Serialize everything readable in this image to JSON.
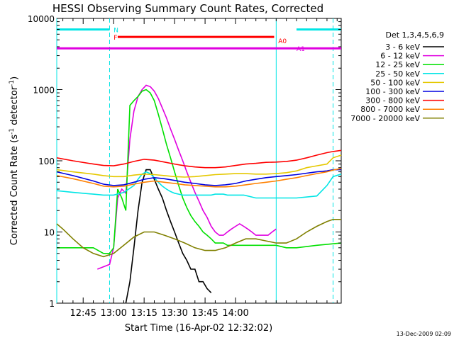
{
  "chart_data": {
    "type": "line",
    "title": "HESSI Observing Summary Count Rates, Corrected",
    "xlabel": "Start Time (16-Apr-02 12:32:02)",
    "ylabel_main": "Corrected Count Rate (s",
    "ylabel_sup1": "-1",
    "ylabel_mid": " detector",
    "ylabel_sup2": "-1",
    "ylabel_end": ")",
    "footer_date": "13-Dec-2009 02:09",
    "y_scale": "log",
    "ylim": [
      1,
      10000
    ],
    "xlim_min": [
      32,
      172
    ],
    "grid": false,
    "legend_position": "right",
    "legend_title": "Det 1,3,4,5,6,9",
    "x_ticks": [
      {
        "min": 45,
        "label": "12:45"
      },
      {
        "min": 60,
        "label": "13:00"
      },
      {
        "min": 75,
        "label": "13:15"
      },
      {
        "min": 90,
        "label": "13:30"
      },
      {
        "min": 105,
        "label": "13:45"
      },
      {
        "min": 120,
        "label": "14:00"
      }
    ],
    "y_ticks": [
      {
        "value": 1,
        "label": "1"
      },
      {
        "value": 10,
        "label": "10"
      },
      {
        "value": 100,
        "label": "100"
      },
      {
        "value": 1000,
        "label": "1000"
      },
      {
        "value": 10000,
        "label": "10000"
      }
    ],
    "flags": [
      {
        "label": "N",
        "color": "#00e5e5",
        "value": 7000,
        "ranges": [
          [
            32,
            58
          ],
          [
            150,
            172
          ]
        ]
      },
      {
        "label": "F",
        "color": "#ff0000",
        "value": 5500,
        "ranges": [
          [
            62,
            139
          ]
        ]
      },
      {
        "label": "A0",
        "color": "#ff0000",
        "value": 4900,
        "ranges": []
      },
      {
        "label": "A1",
        "color": "#e000e0",
        "value": 3800,
        "ranges": [
          [
            32,
            172
          ]
        ]
      }
    ],
    "flag_label_positions": {
      "N": 60,
      "F": 60,
      "A0": 141,
      "A1": 150
    },
    "markers": [
      {
        "min": 32,
        "style": "solid",
        "color": "#00e5e5"
      },
      {
        "min": 58,
        "style": "dashed",
        "color": "#00e5e5"
      },
      {
        "min": 140,
        "style": "solid",
        "color": "#00e5e5"
      },
      {
        "min": 168,
        "style": "dashed",
        "color": "#00e5e5"
      }
    ],
    "series": [
      {
        "name": "3 - 6 keV",
        "color": "#000000",
        "x": [
          66,
          68,
          70,
          72,
          74,
          76,
          78,
          80,
          82,
          84,
          86,
          88,
          90,
          92,
          94,
          96,
          98,
          100,
          102,
          104,
          106,
          108
        ],
        "y": [
          1,
          2,
          6,
          20,
          50,
          75,
          75,
          55,
          40,
          30,
          20,
          14,
          10,
          7,
          5,
          4,
          3,
          3,
          2,
          2,
          1.6,
          1.4
        ]
      },
      {
        "name": "6 - 12 keV",
        "color": "#e000e0",
        "x": [
          52,
          58,
          60,
          62,
          64,
          66,
          68,
          70,
          72,
          74,
          76,
          78,
          80,
          82,
          84,
          86,
          88,
          90,
          92,
          94,
          96,
          98,
          100,
          102,
          104,
          106,
          108,
          110,
          112,
          114,
          116,
          118,
          120,
          122,
          124,
          126,
          128,
          130,
          132,
          134,
          136,
          138,
          140
        ],
        "y": [
          3,
          3.5,
          6,
          30,
          40,
          35,
          200,
          500,
          800,
          1000,
          1150,
          1100,
          950,
          750,
          550,
          400,
          280,
          200,
          140,
          100,
          70,
          50,
          36,
          27,
          20,
          16,
          12,
          10,
          9,
          9,
          10,
          11,
          12,
          13,
          12,
          11,
          10,
          9,
          9,
          9,
          9,
          10,
          11
        ]
      },
      {
        "name": "12 - 25 keV",
        "color": "#00e000",
        "x": [
          32,
          40,
          50,
          55,
          58,
          60,
          62,
          64,
          66,
          68,
          70,
          72,
          74,
          76,
          78,
          80,
          82,
          84,
          86,
          88,
          90,
          92,
          94,
          96,
          98,
          100,
          102,
          104,
          106,
          108,
          110,
          112,
          114,
          116,
          118,
          120,
          122,
          124,
          126,
          128,
          130,
          132,
          134,
          136,
          138,
          140,
          145,
          150,
          160,
          172
        ],
        "y": [
          6,
          6,
          6,
          5,
          5,
          6,
          40,
          30,
          20,
          600,
          700,
          800,
          950,
          1000,
          900,
          700,
          450,
          280,
          170,
          110,
          70,
          45,
          30,
          22,
          17,
          14,
          12,
          10,
          9,
          8,
          7,
          7,
          7,
          6.5,
          6.5,
          6.5,
          6.5,
          6.5,
          6.5,
          6.5,
          6.5,
          6.5,
          6.5,
          6.5,
          6.5,
          6.5,
          6,
          6,
          6.5,
          7
        ]
      },
      {
        "name": "25 - 50 keV",
        "color": "#00e5e5",
        "x": [
          32,
          40,
          50,
          55,
          60,
          65,
          70,
          72,
          74,
          76,
          78,
          80,
          82,
          84,
          86,
          88,
          90,
          92,
          94,
          96,
          98,
          100,
          102,
          104,
          106,
          108,
          110,
          112,
          114,
          116,
          118,
          120,
          122,
          124,
          126,
          128,
          130,
          132,
          134,
          136,
          138,
          140,
          145,
          150,
          160,
          165,
          168,
          172
        ],
        "y": [
          38,
          36,
          34,
          33,
          33,
          36,
          45,
          55,
          65,
          70,
          66,
          58,
          50,
          44,
          40,
          37,
          35,
          34,
          33,
          33,
          33,
          33,
          33,
          33,
          33,
          33,
          34,
          34,
          34,
          33,
          33,
          33,
          33,
          33,
          32,
          31,
          30,
          30,
          30,
          30,
          30,
          30,
          30,
          30,
          32,
          45,
          60,
          65
        ]
      },
      {
        "name": "50 - 100 keV",
        "color": "#e5c800",
        "x": [
          32,
          40,
          50,
          55,
          60,
          65,
          70,
          75,
          80,
          85,
          90,
          95,
          100,
          105,
          110,
          115,
          120,
          125,
          130,
          135,
          140,
          145,
          150,
          155,
          160,
          165,
          168,
          172
        ],
        "y": [
          75,
          70,
          65,
          62,
          60,
          60,
          63,
          65,
          64,
          62,
          60,
          59,
          60,
          62,
          64,
          65,
          66,
          66,
          65,
          65,
          66,
          68,
          72,
          80,
          85,
          90,
          110,
          120
        ]
      },
      {
        "name": "100 - 300 keV",
        "color": "#0000e0",
        "x": [
          32,
          40,
          50,
          55,
          60,
          65,
          70,
          75,
          80,
          85,
          90,
          95,
          100,
          105,
          110,
          115,
          120,
          125,
          130,
          135,
          140,
          145,
          150,
          155,
          160,
          165,
          168,
          172
        ],
        "y": [
          70,
          62,
          52,
          47,
          45,
          46,
          50,
          55,
          58,
          56,
          53,
          50,
          48,
          46,
          45,
          46,
          48,
          52,
          55,
          58,
          60,
          62,
          64,
          67,
          70,
          72,
          75,
          75
        ]
      },
      {
        "name": "300 - 800 keV",
        "color": "#ff0000",
        "x": [
          32,
          40,
          50,
          55,
          60,
          65,
          70,
          75,
          80,
          85,
          90,
          95,
          100,
          105,
          110,
          115,
          120,
          125,
          130,
          135,
          140,
          145,
          150,
          155,
          160,
          165,
          168,
          172
        ],
        "y": [
          110,
          100,
          90,
          86,
          85,
          90,
          98,
          105,
          102,
          96,
          90,
          85,
          82,
          80,
          80,
          82,
          86,
          90,
          92,
          95,
          96,
          98,
          102,
          110,
          120,
          130,
          135,
          140
        ]
      },
      {
        "name": "800 - 7000 keV",
        "color": "#ff8000",
        "x": [
          32,
          40,
          50,
          55,
          60,
          65,
          70,
          75,
          80,
          85,
          90,
          95,
          100,
          105,
          110,
          115,
          120,
          125,
          130,
          135,
          140,
          145,
          150,
          155,
          160,
          165,
          168,
          172
        ],
        "y": [
          62,
          56,
          48,
          44,
          43,
          44,
          47,
          50,
          52,
          50,
          48,
          46,
          45,
          44,
          43,
          43,
          44,
          46,
          48,
          50,
          52,
          55,
          58,
          62,
          66,
          70,
          74,
          78
        ]
      },
      {
        "name": "7000 - 20000 keV",
        "color": "#808000",
        "x": [
          32,
          35,
          40,
          45,
          50,
          55,
          60,
          65,
          70,
          75,
          80,
          85,
          90,
          95,
          100,
          105,
          110,
          115,
          120,
          125,
          130,
          135,
          140,
          145,
          150,
          155,
          160,
          165,
          168,
          172
        ],
        "y": [
          13,
          11,
          8,
          6,
          5,
          4.5,
          5,
          6.5,
          8.5,
          10,
          10,
          9,
          8,
          7,
          6,
          5.5,
          5.5,
          6,
          7,
          8,
          8,
          7.5,
          7,
          7,
          8,
          10,
          12,
          14,
          15,
          15
        ]
      }
    ]
  }
}
